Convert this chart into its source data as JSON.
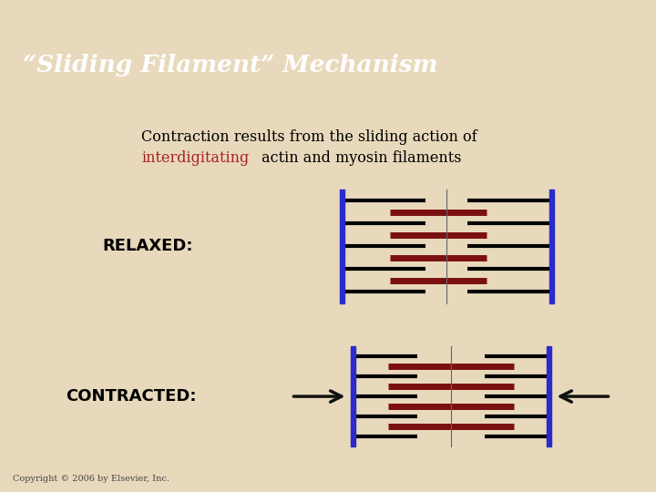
{
  "title": "“Sliding Filament” Mechanism",
  "subtitle_line1": "Contraction results from the sliding action of",
  "subtitle_line2_prefix": "interdigitating",
  "subtitle_line2_suffix": " actin and myosin filaments",
  "label_relaxed": "RELAXED:",
  "label_contracted": "CONTRACTED:",
  "copyright": "Copyright © 2006 by Elsevier, Inc.",
  "header_bg": "#9B1C1C",
  "body_bg": "#E8D9BC",
  "title_color": "#FFFFFF",
  "label_color": "#000000",
  "interdigitating_color": "#AA2222",
  "subtitle_color": "#000000",
  "actin_color": "#000000",
  "myosin_color": "#7B1010",
  "frame_color": "#2B2BCC",
  "center_line_color": "#666666",
  "arrow_color": "#111111"
}
